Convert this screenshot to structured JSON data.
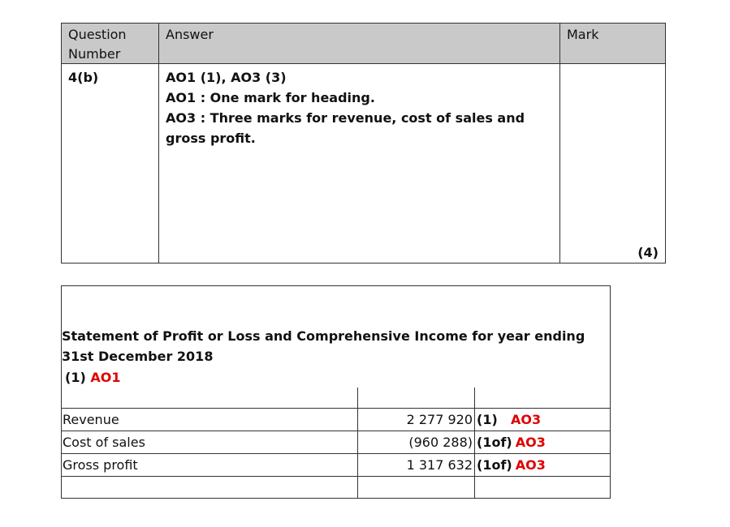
{
  "question_table": {
    "headers": [
      "Question Number",
      "Answer",
      "Mark"
    ],
    "question_number": "4(b)",
    "answer_lines": [
      "AO1 (1), AO3 (3)",
      "AO1 : One mark for heading.",
      "AO3 : Three marks for revenue, cost of sales and gross profit."
    ],
    "mark": "(4)"
  },
  "statement": {
    "title": "Statement of Profit or Loss and Comprehensive Income for year ending 31st December 2018",
    "heading_mark": "(1)",
    "heading_ao": "AO1",
    "rows": [
      {
        "label": "Revenue",
        "amount": "2 277 920",
        "mark": "(1)",
        "ao": "AO3"
      },
      {
        "label": "Cost of sales",
        "amount": "(960 288)",
        "mark": "(1of)",
        "ao": "AO3"
      },
      {
        "label": "Gross profit",
        "amount": "1 317 632",
        "mark": "(1of)",
        "ao": "AO3"
      }
    ]
  }
}
